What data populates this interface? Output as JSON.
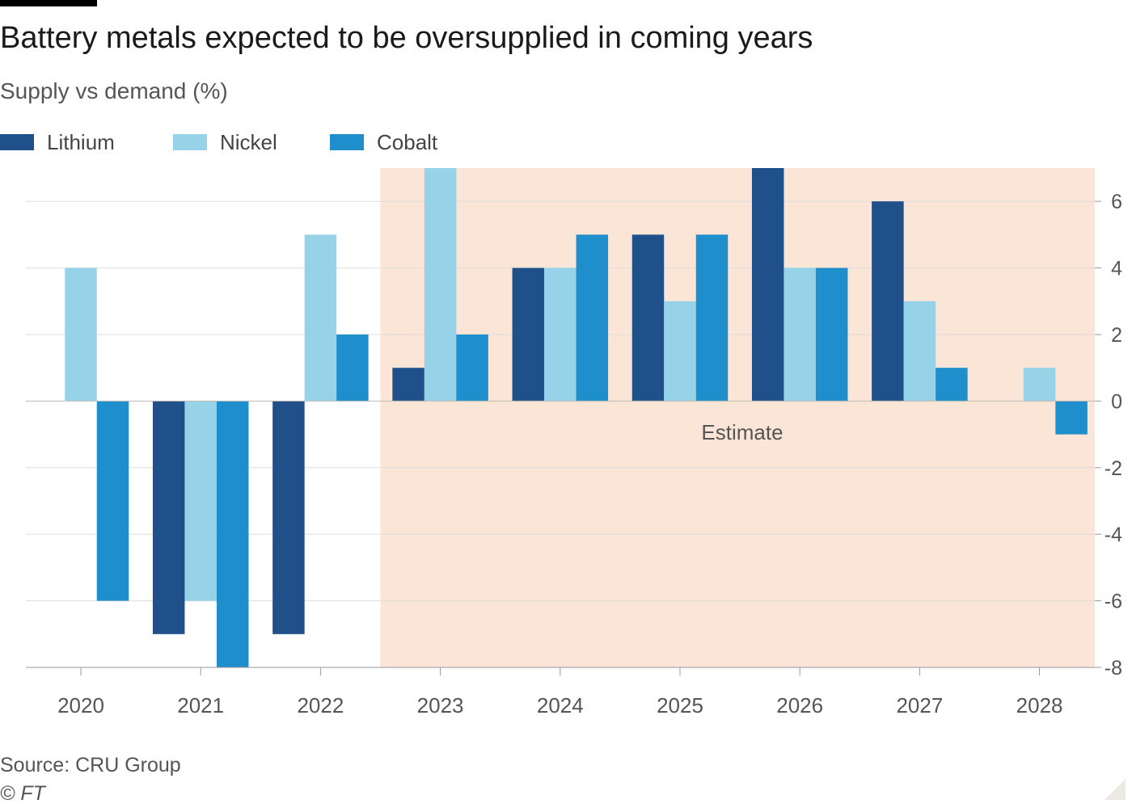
{
  "header": {
    "title": "Battery metals expected to be oversupplied in coming years",
    "subtitle": "Supply vs demand (%)"
  },
  "footer": {
    "source": "Source: CRU Group",
    "credit": "© FT"
  },
  "colors": {
    "lithium": "#1f5089",
    "nickel": "#96d3e8",
    "cobalt": "#1f8ecd",
    "estimate_band": "#fbe5d6",
    "grid": "#e0dcd8",
    "axis": "#999999",
    "tick_text": "#555555"
  },
  "chart_data": {
    "type": "bar",
    "title": "Battery metals expected to be oversupplied in coming years",
    "subtitle": "Supply vs demand (%)",
    "categories": [
      "2020",
      "2021",
      "2022",
      "2023",
      "2024",
      "2025",
      "2026",
      "2027",
      "2028"
    ],
    "series": [
      {
        "name": "Lithium",
        "values": [
          0,
          -7,
          -7,
          1,
          4,
          5,
          7,
          6,
          0
        ]
      },
      {
        "name": "Nickel",
        "values": [
          4,
          -6,
          5,
          7,
          4,
          3,
          4,
          3,
          1
        ]
      },
      {
        "name": "Cobalt",
        "values": [
          -6,
          -8,
          2,
          2,
          5,
          5,
          4,
          1,
          -1
        ]
      }
    ],
    "ylim": [
      -8,
      7
    ],
    "yticks": [
      6,
      4,
      2,
      0,
      -2,
      -4,
      -6,
      -8
    ],
    "ytick_labels": [
      "6",
      "4",
      "2",
      "0",
      "-2",
      "-4",
      "-6",
      "-8"
    ],
    "y_axis_side": "right",
    "grid": true,
    "legend_position": "top-left",
    "xlabel": "",
    "ylabel": "",
    "annotations": [
      {
        "text": "Estimate",
        "from_category": "2023",
        "to_category": "2028",
        "kind": "shaded-range"
      }
    ]
  }
}
